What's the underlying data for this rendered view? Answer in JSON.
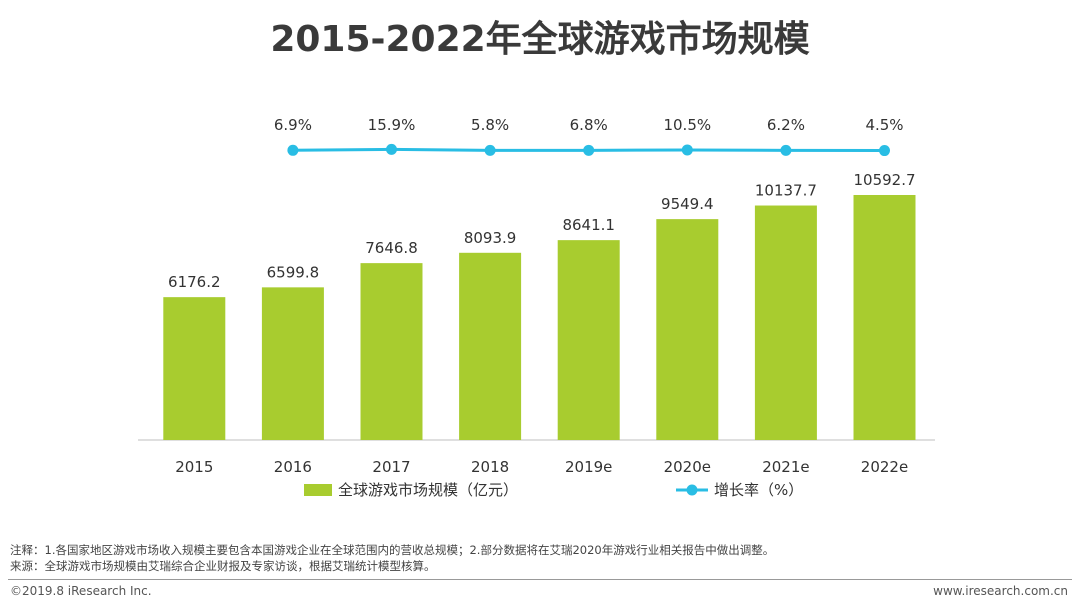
{
  "title": "2015-2022年全球游戏市场规模",
  "chart_data": {
    "type": "bar",
    "title": "2015-2022年全球游戏市场规模",
    "categories": [
      "2015",
      "2016",
      "2017",
      "2018",
      "2019e",
      "2020e",
      "2021e",
      "2022e"
    ],
    "series": [
      {
        "name": "全球游戏市场规模（亿元）",
        "type": "bar",
        "color": "#a8cc2f",
        "values": [
          6176.2,
          6599.8,
          7646.8,
          8093.9,
          8641.1,
          9549.4,
          10137.7,
          10592.7
        ],
        "labels": [
          "6176.2",
          "6599.8",
          "7646.8",
          "8093.9",
          "8641.1",
          "9549.4",
          "10137.7",
          "10592.7"
        ]
      },
      {
        "name": "增长率（%）",
        "type": "line",
        "color": "#29bde4",
        "values": [
          null,
          6.9,
          15.9,
          5.8,
          6.8,
          10.5,
          6.2,
          4.5
        ],
        "labels": [
          "",
          "6.9%",
          "15.9%",
          "5.8%",
          "6.8%",
          "10.5%",
          "6.2%",
          "4.5%"
        ]
      }
    ],
    "ylim": [
      0,
      14700
    ],
    "legend": "bottom",
    "grid": false
  },
  "notes": [
    "注释：1.各国家地区游戏市场收入规模主要包含本国游戏企业在全球范围内的营收总规模；2.部分数据将在艾瑞2020年游戏行业相关报告中做出调整。",
    "来源：全球游戏市场规模由艾瑞综合企业财报及专家访谈，根据艾瑞统计模型核算。"
  ],
  "footer": {
    "copyright": "©2019.8 iResearch Inc.",
    "website": "www.iresearch.com.cn"
  }
}
